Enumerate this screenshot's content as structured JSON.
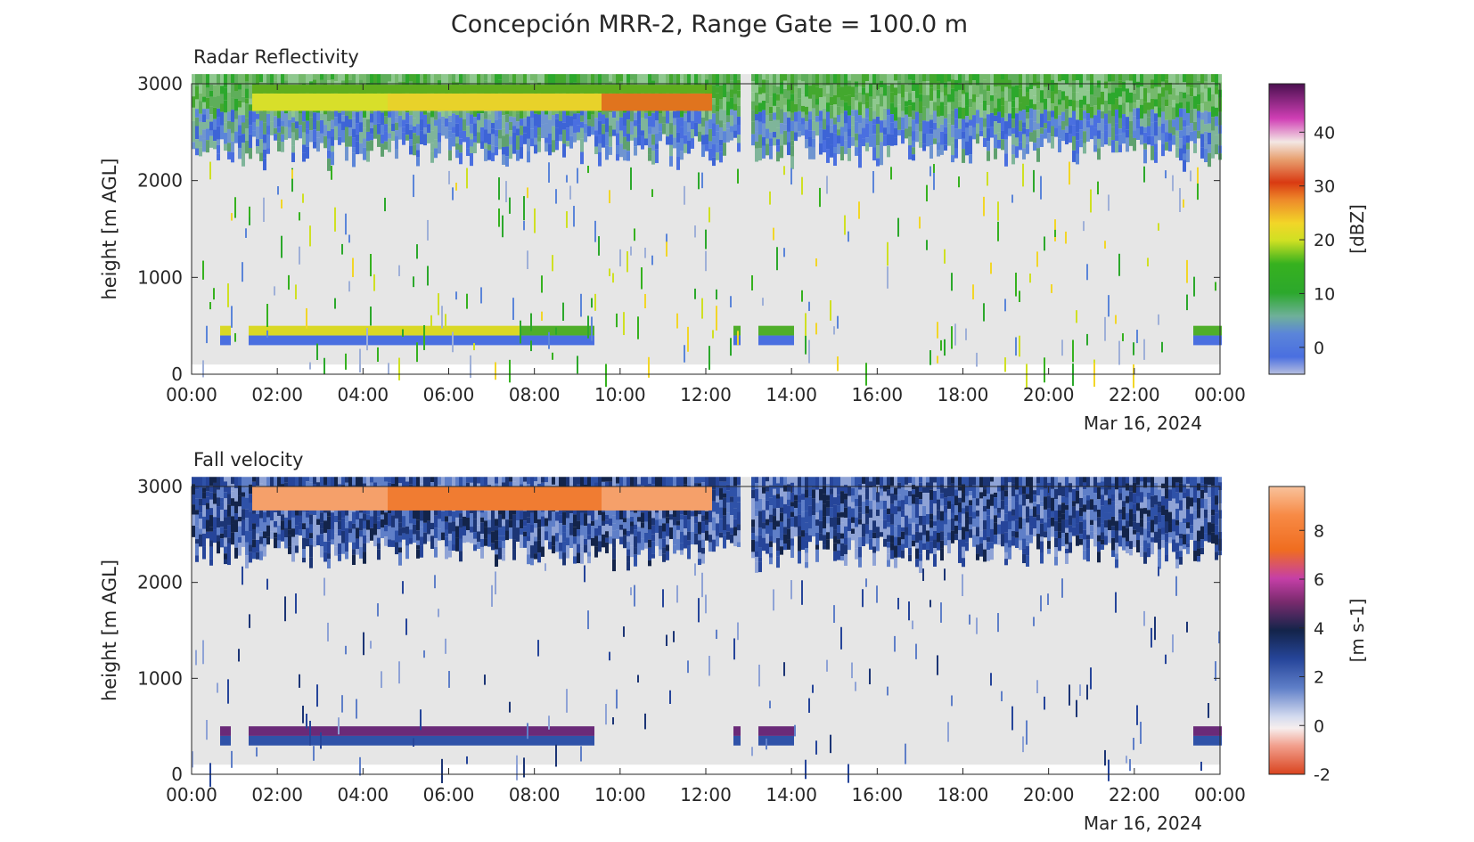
{
  "figure": {
    "title": "Concepción MRR-2, Range Gate = 100.0 m"
  },
  "chart_data": [
    {
      "type": "heatmap",
      "title": "Radar Reflectivity",
      "ylabel": "height [m AGL]",
      "xlabel": "",
      "date_label": "Mar 16, 2024",
      "xticks": [
        "00:00",
        "02:00",
        "04:00",
        "06:00",
        "08:00",
        "10:00",
        "12:00",
        "14:00",
        "16:00",
        "18:00",
        "20:00",
        "22:00",
        "00:00"
      ],
      "xlim_hours": [
        0,
        24
      ],
      "yticks": [
        0,
        1000,
        2000,
        3000
      ],
      "ylim": [
        0,
        3000
      ],
      "colorbar": {
        "label": "[dBZ]",
        "ticks": [
          0,
          10,
          20,
          30,
          40
        ],
        "range": [
          -5,
          49
        ]
      },
      "background_color": "#e6e6e6",
      "grid": false
    },
    {
      "type": "heatmap",
      "title": "Fall velocity",
      "ylabel": "height [m AGL]",
      "xlabel": "",
      "date_label": "Mar 16, 2024",
      "xticks": [
        "00:00",
        "02:00",
        "04:00",
        "06:00",
        "08:00",
        "10:00",
        "12:00",
        "14:00",
        "16:00",
        "18:00",
        "20:00",
        "22:00",
        "00:00"
      ],
      "xlim_hours": [
        0,
        24
      ],
      "yticks": [
        0,
        1000,
        2000,
        3000
      ],
      "ylim": [
        0,
        3000
      ],
      "colorbar": {
        "label": "[m s-1]",
        "ticks": [
          -2,
          0,
          2,
          4,
          6,
          8
        ],
        "range": [
          -2,
          9.8
        ]
      },
      "background_color": "#e6e6e6",
      "grid": false
    }
  ]
}
